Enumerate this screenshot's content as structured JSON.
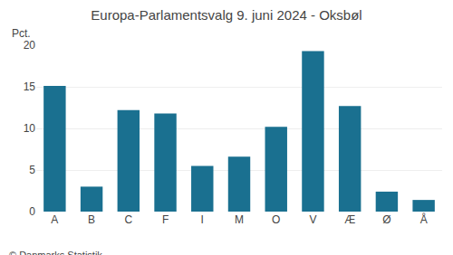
{
  "chart_data": {
    "type": "bar",
    "title": "Europa-Parlamentsvalg 9. juni 2024 - Oksbøl",
    "ylabel": "Pct.",
    "annotations": [
      "© Danmarks Statistik"
    ],
    "categories": [
      "A",
      "B",
      "C",
      "F",
      "I",
      "M",
      "O",
      "V",
      "Æ",
      "Ø",
      "Å"
    ],
    "values": [
      15.1,
      3.0,
      12.2,
      11.8,
      5.5,
      6.6,
      10.2,
      19.3,
      12.7,
      2.4,
      1.4
    ],
    "color": "#1a7090",
    "ylim": [
      0,
      20
    ],
    "yticks": [
      0,
      5,
      10,
      15,
      20
    ],
    "grid": true
  }
}
